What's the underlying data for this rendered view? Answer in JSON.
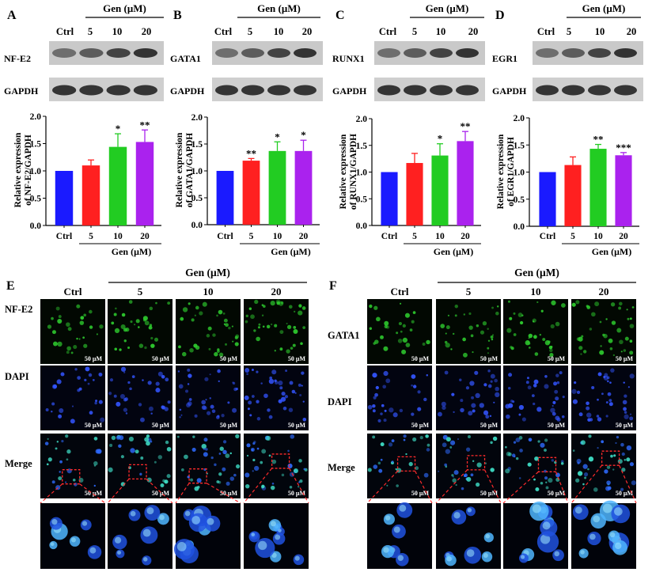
{
  "figure": {
    "gen_label": "Gen (μM)",
    "conditions": [
      "Ctrl",
      "5",
      "10",
      "20"
    ],
    "blot_panels": [
      {
        "letter": "A",
        "protein": "NF-E2",
        "loading": "GAPDH"
      },
      {
        "letter": "B",
        "protein": "GATA1",
        "loading": "GAPDH"
      },
      {
        "letter": "C",
        "protein": "RUNX1",
        "loading": "GAPDH"
      },
      {
        "letter": "D",
        "protein": "EGR1",
        "loading": "GAPDH"
      }
    ],
    "if_panels": [
      {
        "letter": "E",
        "rows": [
          "NF-E2",
          "DAPI",
          "Merge"
        ],
        "scale": "50 μM"
      },
      {
        "letter": "F",
        "rows": [
          "GATA1",
          "DAPI",
          "Merge"
        ],
        "scale": "50 μM"
      }
    ]
  },
  "chart_data": [
    {
      "type": "bar",
      "panel": "A",
      "categories": [
        "Ctrl",
        "5",
        "10",
        "20"
      ],
      "values": [
        1.0,
        1.1,
        1.44,
        1.53
      ],
      "errors": [
        0,
        0.1,
        0.24,
        0.22
      ],
      "significance": [
        "",
        "",
        "*",
        "**"
      ],
      "ylabel_lines": [
        "Relative expression",
        "of NF-E2/GAPDH"
      ],
      "xlabel": "Gen (μM)",
      "ylim": [
        0,
        2.0
      ],
      "yticks": [
        "0.0",
        "0.5",
        "1.0",
        "1.5",
        "2.0"
      ],
      "colors": [
        "#1a1aff",
        "#ff2020",
        "#22cc22",
        "#aa22ee"
      ]
    },
    {
      "type": "bar",
      "panel": "B",
      "categories": [
        "Ctrl",
        "5",
        "10",
        "20"
      ],
      "values": [
        1.0,
        1.19,
        1.37,
        1.37
      ],
      "errors": [
        0,
        0.04,
        0.17,
        0.2
      ],
      "significance": [
        "",
        "**",
        "*",
        "*"
      ],
      "ylabel_lines": [
        "Relative expression",
        "of GATA1/GAPDH"
      ],
      "xlabel": "Gen (μM)",
      "ylim": [
        0,
        2.0
      ],
      "yticks": [
        "0.0",
        "0.5",
        "1.0",
        "1.5",
        "2.0"
      ],
      "colors": [
        "#1a1aff",
        "#ff2020",
        "#22cc22",
        "#aa22ee"
      ]
    },
    {
      "type": "bar",
      "panel": "C",
      "categories": [
        "Ctrl",
        "5",
        "10",
        "20"
      ],
      "values": [
        1.0,
        1.17,
        1.31,
        1.58
      ],
      "errors": [
        0,
        0.18,
        0.22,
        0.18
      ],
      "significance": [
        "",
        "",
        "*",
        "**"
      ],
      "ylabel_lines": [
        "Relative expression",
        "of RUNX1/GAPDH"
      ],
      "xlabel": "Gen (μM)",
      "ylim": [
        0,
        2.0
      ],
      "yticks": [
        "0.0",
        "0.5",
        "1.0",
        "1.5",
        "2.0"
      ],
      "colors": [
        "#1a1aff",
        "#ff2020",
        "#22cc22",
        "#aa22ee"
      ]
    },
    {
      "type": "bar",
      "panel": "D",
      "categories": [
        "Ctrl",
        "5",
        "10",
        "20"
      ],
      "values": [
        1.0,
        1.13,
        1.43,
        1.31
      ],
      "errors": [
        0,
        0.15,
        0.08,
        0.05
      ],
      "significance": [
        "",
        "",
        "**",
        "***"
      ],
      "ylabel_lines": [
        "Relative expression",
        "of EGR1/GAPDH"
      ],
      "xlabel": "Gen (μM)",
      "ylim": [
        0,
        2.0
      ],
      "yticks": [
        "0.0",
        "0.5",
        "1.0",
        "1.5",
        "2.0"
      ],
      "colors": [
        "#1a1aff",
        "#ff2020",
        "#22cc22",
        "#aa22ee"
      ]
    }
  ]
}
